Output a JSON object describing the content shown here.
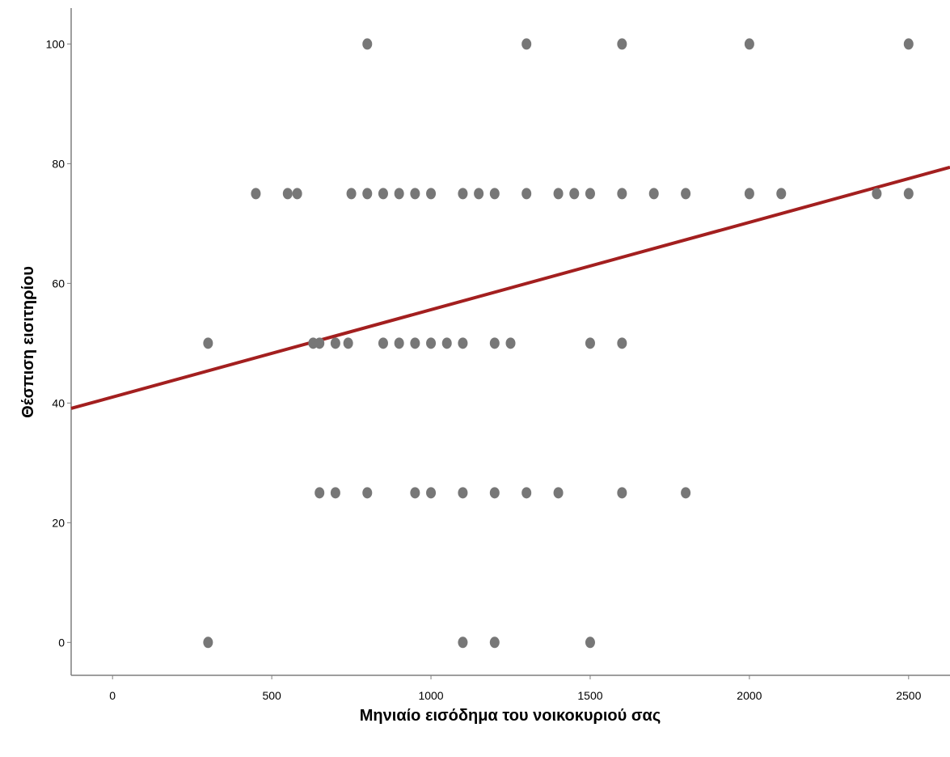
{
  "chart_data": {
    "type": "scatter",
    "title": "",
    "xlabel": "Μηνιαίο εισόδημα του νοικοκυριού σας",
    "ylabel": "Θέσπιση εισιτηρίου",
    "xlim": [
      -130,
      2630
    ],
    "ylim": [
      -5.5,
      106
    ],
    "xticks": [
      0,
      500,
      1000,
      1500,
      2000,
      2500
    ],
    "yticks": [
      0,
      20,
      40,
      60,
      80,
      100
    ],
    "xtick_labels": [
      "0",
      "500",
      "1000",
      "1500",
      "2000",
      "2500"
    ],
    "ytick_labels": [
      "0",
      "20",
      "40",
      "60",
      "80",
      "100"
    ],
    "grid": false,
    "legend": "none",
    "point_color": "#777777",
    "fit_line_color": "#a31f1f",
    "points": [
      {
        "x": 800,
        "y": 100
      },
      {
        "x": 1300,
        "y": 100
      },
      {
        "x": 1600,
        "y": 100
      },
      {
        "x": 2000,
        "y": 100
      },
      {
        "x": 2500,
        "y": 100
      },
      {
        "x": 450,
        "y": 75
      },
      {
        "x": 550,
        "y": 75
      },
      {
        "x": 580,
        "y": 75
      },
      {
        "x": 750,
        "y": 75
      },
      {
        "x": 800,
        "y": 75
      },
      {
        "x": 850,
        "y": 75
      },
      {
        "x": 900,
        "y": 75
      },
      {
        "x": 950,
        "y": 75
      },
      {
        "x": 1000,
        "y": 75
      },
      {
        "x": 1100,
        "y": 75
      },
      {
        "x": 1150,
        "y": 75
      },
      {
        "x": 1200,
        "y": 75
      },
      {
        "x": 1300,
        "y": 75
      },
      {
        "x": 1400,
        "y": 75
      },
      {
        "x": 1450,
        "y": 75
      },
      {
        "x": 1500,
        "y": 75
      },
      {
        "x": 1600,
        "y": 75
      },
      {
        "x": 1700,
        "y": 75
      },
      {
        "x": 1800,
        "y": 75
      },
      {
        "x": 2000,
        "y": 75
      },
      {
        "x": 2100,
        "y": 75
      },
      {
        "x": 2400,
        "y": 75
      },
      {
        "x": 2500,
        "y": 75
      },
      {
        "x": 300,
        "y": 50
      },
      {
        "x": 630,
        "y": 50
      },
      {
        "x": 650,
        "y": 50
      },
      {
        "x": 700,
        "y": 50
      },
      {
        "x": 740,
        "y": 50
      },
      {
        "x": 850,
        "y": 50
      },
      {
        "x": 900,
        "y": 50
      },
      {
        "x": 950,
        "y": 50
      },
      {
        "x": 1000,
        "y": 50
      },
      {
        "x": 1050,
        "y": 50
      },
      {
        "x": 1100,
        "y": 50
      },
      {
        "x": 1200,
        "y": 50
      },
      {
        "x": 1250,
        "y": 50
      },
      {
        "x": 1500,
        "y": 50
      },
      {
        "x": 1600,
        "y": 50
      },
      {
        "x": 650,
        "y": 25
      },
      {
        "x": 700,
        "y": 25
      },
      {
        "x": 800,
        "y": 25
      },
      {
        "x": 950,
        "y": 25
      },
      {
        "x": 1000,
        "y": 25
      },
      {
        "x": 1100,
        "y": 25
      },
      {
        "x": 1200,
        "y": 25
      },
      {
        "x": 1300,
        "y": 25
      },
      {
        "x": 1400,
        "y": 25
      },
      {
        "x": 1600,
        "y": 25
      },
      {
        "x": 1800,
        "y": 25
      },
      {
        "x": 300,
        "y": 0
      },
      {
        "x": 1100,
        "y": 0
      },
      {
        "x": 1200,
        "y": 0
      },
      {
        "x": 1500,
        "y": 0
      }
    ],
    "fit_line": {
      "intercept": 41.0,
      "slope": 0.0146
    }
  }
}
